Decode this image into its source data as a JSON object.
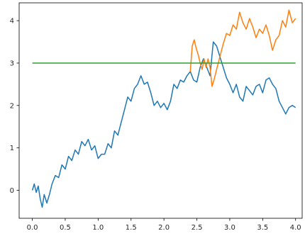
{
  "chart_data": {
    "type": "line",
    "title": "",
    "xlabel": "",
    "ylabel": "",
    "xlim": [
      -0.2,
      4.1
    ],
    "ylim": [
      -0.66,
      4.42
    ],
    "xticks": [
      0.0,
      0.5,
      1.0,
      1.5,
      2.0,
      2.5,
      3.0,
      3.5,
      4.0
    ],
    "xtick_labels": [
      "0.0",
      "0.5",
      "1.0",
      "1.5",
      "2.0",
      "2.5",
      "3.0",
      "3.5",
      "4.0"
    ],
    "yticks": [
      0,
      1,
      2,
      3,
      4
    ],
    "ytick_labels": [
      "0",
      "1",
      "2",
      "3",
      "4"
    ],
    "grid": false,
    "legend": "none",
    "series": [
      {
        "color": "#1f77b4",
        "x": [
          0.0,
          0.03,
          0.06,
          0.09,
          0.12,
          0.15,
          0.18,
          0.22,
          0.26,
          0.3,
          0.35,
          0.4,
          0.45,
          0.5,
          0.55,
          0.6,
          0.65,
          0.7,
          0.75,
          0.8,
          0.85,
          0.9,
          0.95,
          1.0,
          1.05,
          1.1,
          1.15,
          1.2,
          1.25,
          1.3,
          1.35,
          1.4,
          1.45,
          1.5,
          1.55,
          1.6,
          1.65,
          1.7,
          1.75,
          1.8,
          1.85,
          1.9,
          1.95,
          2.0,
          2.05,
          2.1,
          2.15,
          2.2,
          2.25,
          2.3,
          2.35,
          2.4,
          2.45,
          2.5,
          2.55,
          2.6,
          2.65,
          2.7,
          2.75,
          2.8,
          2.85,
          2.9,
          2.95,
          3.0,
          3.05,
          3.1,
          3.15,
          3.2,
          3.25,
          3.3,
          3.35,
          3.4,
          3.45,
          3.5,
          3.55,
          3.6,
          3.65,
          3.7,
          3.75,
          3.8,
          3.85,
          3.9,
          3.95,
          4.0
        ],
        "y": [
          0.0,
          0.15,
          -0.05,
          0.1,
          -0.2,
          -0.4,
          -0.1,
          -0.3,
          -0.1,
          0.15,
          0.35,
          0.3,
          0.6,
          0.5,
          0.8,
          0.7,
          0.95,
          0.85,
          1.15,
          1.05,
          1.2,
          0.95,
          1.05,
          0.75,
          0.85,
          0.85,
          1.1,
          1.0,
          1.4,
          1.3,
          1.6,
          1.9,
          2.2,
          2.1,
          2.4,
          2.5,
          2.7,
          2.5,
          2.55,
          2.3,
          2.0,
          2.1,
          1.95,
          2.05,
          1.9,
          2.1,
          2.5,
          2.4,
          2.6,
          2.55,
          2.7,
          2.8,
          2.6,
          2.55,
          2.9,
          3.1,
          2.9,
          2.7,
          3.5,
          3.4,
          3.15,
          2.9,
          2.65,
          2.5,
          2.3,
          2.5,
          2.2,
          2.1,
          2.45,
          2.35,
          2.25,
          2.45,
          2.5,
          2.3,
          2.6,
          2.65,
          2.5,
          2.4,
          2.1,
          1.95,
          1.8,
          1.95,
          2.0,
          1.95
        ]
      },
      {
        "color": "#ff7f0e",
        "x": [
          2.4,
          2.43,
          2.46,
          2.49,
          2.52,
          2.55,
          2.58,
          2.61,
          2.64,
          2.67,
          2.7,
          2.73,
          2.76,
          2.8,
          2.85,
          2.9,
          2.95,
          3.0,
          3.05,
          3.1,
          3.15,
          3.2,
          3.25,
          3.3,
          3.35,
          3.4,
          3.45,
          3.5,
          3.55,
          3.6,
          3.65,
          3.7,
          3.75,
          3.8,
          3.85,
          3.9,
          3.95,
          4.0
        ],
        "y": [
          2.8,
          3.4,
          3.55,
          3.35,
          3.2,
          3.0,
          2.85,
          3.1,
          2.9,
          3.1,
          2.9,
          2.45,
          2.6,
          2.85,
          3.15,
          3.45,
          3.7,
          3.65,
          3.9,
          3.8,
          4.2,
          3.95,
          3.8,
          4.05,
          3.85,
          3.6,
          3.8,
          3.7,
          3.9,
          3.65,
          3.3,
          3.55,
          3.65,
          4.0,
          3.85,
          4.25,
          3.95,
          4.05
        ]
      },
      {
        "color": "#2ca02c",
        "x": [
          0.0,
          4.0
        ],
        "y": [
          3.0,
          3.0
        ]
      }
    ]
  }
}
